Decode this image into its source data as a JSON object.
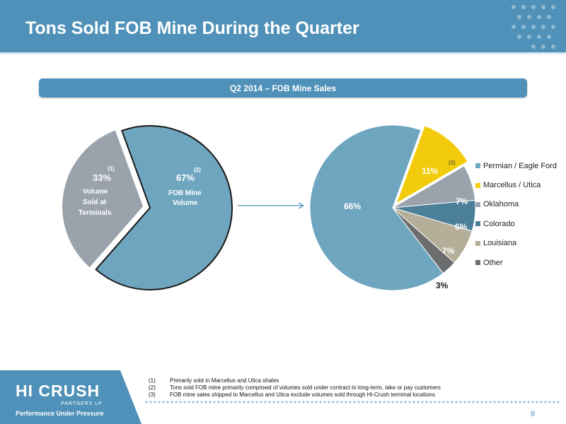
{
  "header": {
    "title": "Tons Sold FOB Mine During the Quarter"
  },
  "banner": {
    "label": "Q2 2014 – FOB Mine Sales"
  },
  "left_chart": {
    "slices": [
      {
        "percent": "33%",
        "note": "(1)",
        "label_lines": [
          "Volume",
          "Sold at",
          "Terminals"
        ],
        "color": "#9aa3ab"
      },
      {
        "percent": "67%",
        "note": "(2)",
        "label_lines": [
          "FOB Mine",
          "Volume"
        ],
        "color": "#6fa6bf"
      }
    ]
  },
  "chart_data": {
    "type": "pie",
    "title": "Q2 2014 – FOB Mine Sales",
    "categories": [
      "Permian / Eagle Ford",
      "Marcellus / Utica",
      "Oklahoma",
      "Colorado",
      "Louisiana",
      "Other"
    ],
    "values": [
      66,
      11,
      7,
      6,
      7,
      3
    ],
    "labels": [
      "66%",
      "11%",
      "7%",
      "6%",
      "7%",
      "3%"
    ],
    "colors": [
      "#6fa6bf",
      "#f2cc0c",
      "#9aa3ab",
      "#4c7f9a",
      "#b5ae98",
      "#6b6d6f"
    ],
    "annotations": [
      {
        "category": "Marcellus / Utica",
        "text": "(3)"
      }
    ],
    "legend_position": "right"
  },
  "footnotes": [
    {
      "num": "(1)",
      "text": "Primarily sold in Marcellus and Utica shales"
    },
    {
      "num": "(2)",
      "text": "Tons sold FOB mine primarily comprised of volumes sold under contract to long-term, take or pay customers"
    },
    {
      "num": "(3)",
      "text": "FOB mine sales shipped to Marcellus and Utica exclude volumes sold through Hi-Crush terminal locations"
    }
  ],
  "footer": {
    "logo": "HI CRUSH",
    "logo_sub": "PARTNERS LP",
    "tagline": "Performance Under Pressure",
    "page_number": "9"
  }
}
